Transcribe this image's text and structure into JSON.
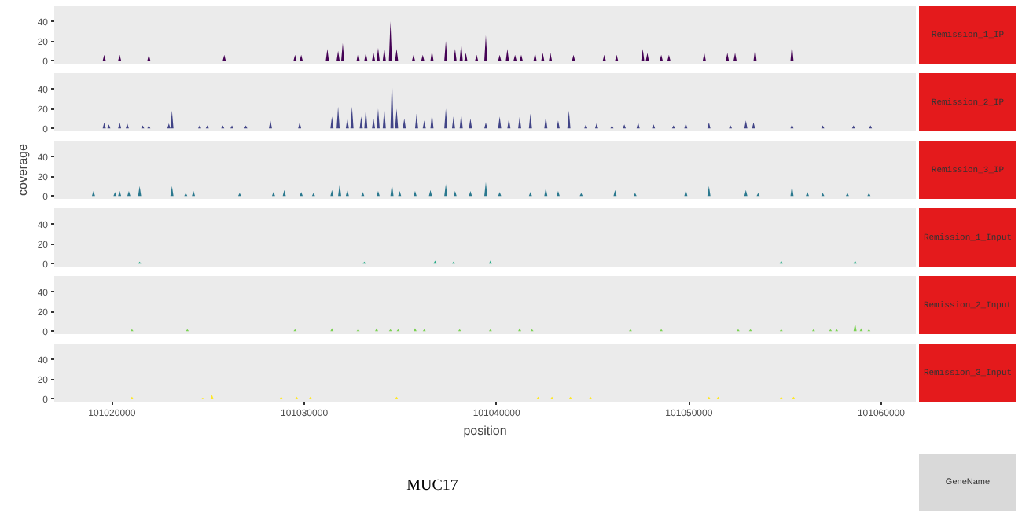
{
  "chart_data": [
    {
      "type": "area",
      "xlim": [
        101017000,
        101061800
      ],
      "ylim": [
        -3,
        56
      ],
      "xticks": [
        101020000,
        101030000,
        101040000,
        101050000,
        101060000
      ],
      "yticks": [
        0,
        20,
        40
      ],
      "tick_labels": "y",
      "series": [
        {
          "name": "Remission_1_IP",
          "color": "#440154",
          "x": [
            101018960,
            101019520,
            101019600,
            101019680,
            101020320,
            101020400,
            101020480,
            101021840,
            101021920,
            101022000,
            101025760,
            101025840,
            101025920,
            101029440,
            101029520,
            101029600,
            101029760,
            101029840,
            101029920,
            101031120,
            101031200,
            101031280,
            101031680,
            101031760,
            101031840,
            101031920,
            101032000,
            101032080,
            101032720,
            101032800,
            101032880,
            101033120,
            101033200,
            101033280,
            101033520,
            101033600,
            101033680,
            101033760,
            101033840,
            101033920,
            101034080,
            101034160,
            101034240,
            101034400,
            101034480,
            101034560,
            101034720,
            101034800,
            101034880,
            101035600,
            101035680,
            101035760,
            101036080,
            101036160,
            101036240,
            101036560,
            101036640,
            101036720,
            101037280,
            101037360,
            101037440,
            101037760,
            101037840,
            101037920,
            101038080,
            101038160,
            101038240,
            101038320,
            101038400,
            101038480,
            101038880,
            101038960,
            101039040,
            101039360,
            101039440,
            101039520,
            101040080,
            101040160,
            101040240,
            101040480,
            101040560,
            101040640,
            101040880,
            101040960,
            101041040,
            101041200,
            101041280,
            101041360,
            101041920,
            101042000,
            101042080,
            101042320,
            101042400,
            101042480,
            101042720,
            101042800,
            101042880,
            101043920,
            101044000,
            101044080,
            101045520,
            101045600,
            101045680,
            101046160,
            101046240,
            101046320,
            101047520,
            101047600,
            101047680,
            101047760,
            101047840,
            101047920,
            101048480,
            101048560,
            101048640,
            101048880,
            101048960,
            101049040,
            101050720,
            101050800,
            101050880,
            101051920,
            101052000,
            101052080,
            101052320,
            101052400,
            101052480,
            101053360,
            101053440,
            101053520,
            101055280,
            101055360,
            101055440,
            101059900
          ],
          "values": [
            0,
            0,
            6,
            0,
            0,
            6,
            0,
            0,
            6,
            0,
            0,
            6,
            0,
            0,
            6,
            0,
            0,
            6,
            0,
            0,
            12,
            0,
            0,
            10,
            0,
            0,
            18,
            0,
            0,
            8,
            0,
            0,
            8,
            0,
            0,
            8,
            0,
            0,
            13,
            0,
            0,
            13,
            0,
            0,
            40,
            0,
            0,
            12,
            0,
            0,
            6,
            0,
            0,
            6,
            0,
            0,
            10,
            0,
            0,
            20,
            0,
            0,
            12,
            0,
            0,
            18,
            0,
            0,
            8,
            0,
            0,
            6,
            0,
            0,
            26,
            0,
            0,
            6,
            0,
            0,
            12,
            0,
            0,
            6,
            0,
            0,
            6,
            0,
            0,
            8,
            0,
            0,
            8,
            0,
            0,
            8,
            0,
            0,
            6,
            0,
            0,
            6,
            0,
            0,
            6,
            0,
            0,
            12,
            0,
            0,
            8,
            0,
            0,
            6,
            0,
            0,
            6,
            0,
            0,
            8,
            0,
            0,
            8,
            0,
            0,
            8,
            0,
            0,
            12,
            0,
            0,
            16,
            0,
            0
          ]
        }
      ]
    },
    {
      "type": "area",
      "xlim": [
        101017000,
        101061800
      ],
      "ylim": [
        -3,
        56
      ],
      "xticks": [
        101020000,
        101030000,
        101040000,
        101050000,
        101060000
      ],
      "yticks": [
        0,
        20,
        40
      ],
      "tick_labels": "y",
      "series": [
        {
          "name": "Remission_2_IP",
          "color": "#414487",
          "x": [
            101018960,
            101019520,
            101019600,
            101019680,
            101019760,
            101019840,
            101019920,
            101020320,
            101020400,
            101020480,
            101020720,
            101020800,
            101020880,
            101021520,
            101021600,
            101021680,
            101021840,
            101021920,
            101022000,
            101022880,
            101022960,
            101023040,
            101023040,
            101023120,
            101023200,
            101024480,
            101024560,
            101024640,
            101024880,
            101024960,
            101025040,
            101025680,
            101025760,
            101025840,
            101026160,
            101026240,
            101026320,
            101026880,
            101026960,
            101027040,
            101028160,
            101028240,
            101028320,
            101029680,
            101029760,
            101029840,
            101031360,
            101031440,
            101031520,
            101031680,
            101031760,
            101031840,
            101032160,
            101032240,
            101032320,
            101032400,
            101032480,
            101032560,
            101032880,
            101032960,
            101033040,
            101033120,
            101033200,
            101033280,
            101033520,
            101033600,
            101033680,
            101033760,
            101033840,
            101033920,
            101034080,
            101034160,
            101034240,
            101034480,
            101034560,
            101034640,
            101034720,
            101034800,
            101034880,
            101035120,
            101035200,
            101035280,
            101035760,
            101035840,
            101035920,
            101036160,
            101036240,
            101036320,
            101036560,
            101036640,
            101036720,
            101037280,
            101037360,
            101037440,
            101037680,
            101037760,
            101037840,
            101038080,
            101038160,
            101038240,
            101038560,
            101038640,
            101038720,
            101039360,
            101039440,
            101039520,
            101040080,
            101040160,
            101040240,
            101040560,
            101040640,
            101040720,
            101041120,
            101041200,
            101041280,
            101041680,
            101041760,
            101041840,
            101042480,
            101042560,
            101042640,
            101043120,
            101043200,
            101043280,
            101043680,
            101043760,
            101043840,
            101044560,
            101044640,
            101044720,
            101045120,
            101045200,
            101045280,
            101045920,
            101046000,
            101046080,
            101046560,
            101046640,
            101046720,
            101047280,
            101047360,
            101047440,
            101048080,
            101048160,
            101048240,
            101049120,
            101049200,
            101049280,
            101049760,
            101049840,
            101049920,
            101050960,
            101051040,
            101051120,
            101052080,
            101052160,
            101052240,
            101052880,
            101052960,
            101053040,
            101053280,
            101053360,
            101053440,
            101055280,
            101055360,
            101055440,
            101056880,
            101056960,
            101057040,
            101058480,
            101058560,
            101058640,
            101059360,
            101059440,
            101059520,
            101059900
          ],
          "values": [
            0,
            0,
            6,
            0,
            0,
            4,
            0,
            0,
            6,
            0,
            0,
            5,
            0,
            0,
            3,
            0,
            0,
            3,
            0,
            0,
            5,
            0,
            0,
            18,
            0,
            0,
            3,
            0,
            0,
            3,
            0,
            0,
            3,
            0,
            0,
            3,
            0,
            0,
            3,
            0,
            0,
            8,
            0,
            0,
            6,
            0,
            0,
            12,
            0,
            0,
            22,
            0,
            0,
            10,
            0,
            0,
            22,
            0,
            0,
            12,
            0,
            0,
            20,
            0,
            0,
            10,
            0,
            0,
            20,
            0,
            0,
            20,
            0,
            0,
            52,
            0,
            0,
            20,
            0,
            0,
            10,
            0,
            0,
            15,
            0,
            0,
            8,
            0,
            0,
            15,
            0,
            0,
            20,
            0,
            0,
            12,
            0,
            0,
            15,
            0,
            0,
            10,
            0,
            0,
            6,
            0,
            0,
            12,
            0,
            0,
            10,
            0,
            0,
            12,
            0,
            0,
            15,
            0,
            0,
            12,
            0,
            0,
            8,
            0,
            0,
            18,
            0,
            0,
            4,
            0,
            0,
            5,
            0,
            0,
            3,
            0,
            0,
            4,
            0,
            0,
            6,
            0,
            0,
            4,
            0,
            0,
            3,
            0,
            0,
            5,
            0,
            0,
            6,
            0,
            0,
            3,
            0,
            0,
            8,
            0,
            0,
            6,
            0,
            0,
            4,
            0,
            0,
            3,
            0,
            0,
            3,
            0,
            0,
            3,
            0,
            0
          ]
        }
      ]
    },
    {
      "type": "area",
      "xlim": [
        101017000,
        101061800
      ],
      "ylim": [
        -3,
        56
      ],
      "xticks": [
        101020000,
        101030000,
        101040000,
        101050000,
        101060000
      ],
      "yticks": [
        0,
        20,
        40
      ],
      "tick_labels": "y",
      "ylabel": "coverage",
      "series": [
        {
          "name": "Remission_3_IP",
          "color": "#2a788e",
          "x": [
            101018960,
            101019040,
            101019120,
            101020080,
            101020160,
            101020240,
            101020320,
            101020400,
            101020480,
            101020800,
            101020880,
            101020960,
            101021360,
            101021440,
            101021520,
            101023040,
            101023120,
            101023200,
            101023760,
            101023840,
            101023920,
            101024160,
            101024240,
            101024320,
            101026560,
            101026640,
            101026720,
            101028320,
            101028400,
            101028480,
            101028880,
            101028960,
            101029040,
            101029760,
            101029840,
            101029920,
            101030400,
            101030480,
            101030560,
            101031360,
            101031440,
            101031520,
            101031760,
            101031840,
            101031920,
            101032160,
            101032240,
            101032320,
            101032960,
            101033040,
            101033120,
            101033760,
            101033840,
            101033920,
            101034480,
            101034560,
            101034640,
            101034880,
            101034960,
            101035040,
            101035680,
            101035760,
            101035840,
            101036480,
            101036560,
            101036640,
            101037280,
            101037360,
            101037440,
            101037760,
            101037840,
            101037920,
            101038560,
            101038640,
            101038720,
            101039360,
            101039440,
            101039520,
            101040080,
            101040160,
            101040240,
            101041680,
            101041760,
            101041840,
            101042480,
            101042560,
            101042640,
            101043120,
            101043200,
            101043280,
            101044320,
            101044400,
            101044480,
            101046080,
            101046160,
            101046240,
            101047120,
            101047200,
            101047280,
            101049760,
            101049840,
            101049920,
            101050960,
            101051040,
            101051120,
            101052880,
            101052960,
            101053040,
            101053520,
            101053600,
            101053680,
            101055280,
            101055360,
            101055440,
            101056080,
            101056160,
            101056240,
            101056880,
            101056960,
            101057040,
            101058160,
            101058240,
            101058320,
            101059280,
            101059360,
            101059440,
            101059900
          ],
          "values": [
            0,
            5,
            0,
            0,
            4,
            0,
            0,
            5,
            0,
            0,
            5,
            0,
            0,
            10,
            0,
            0,
            10,
            0,
            0,
            3,
            0,
            0,
            5,
            0,
            0,
            3,
            0,
            0,
            4,
            0,
            0,
            6,
            0,
            0,
            4,
            0,
            0,
            3,
            0,
            0,
            6,
            0,
            0,
            12,
            0,
            0,
            6,
            0,
            0,
            4,
            0,
            0,
            5,
            0,
            0,
            12,
            0,
            0,
            5,
            0,
            0,
            5,
            0,
            0,
            6,
            0,
            0,
            12,
            0,
            0,
            5,
            0,
            0,
            5,
            0,
            0,
            14,
            0,
            0,
            4,
            0,
            0,
            4,
            0,
            0,
            8,
            0,
            0,
            5,
            0,
            0,
            3,
            0,
            0,
            6,
            0,
            0,
            3,
            0,
            0,
            6,
            0,
            0,
            10,
            0,
            0,
            6,
            0,
            0,
            3,
            0,
            0,
            10,
            0,
            0,
            4,
            0,
            0,
            3,
            0,
            0,
            3,
            0,
            0,
            3,
            0,
            0
          ]
        }
      ]
    },
    {
      "type": "area",
      "xlim": [
        101017000,
        101061800
      ],
      "ylim": [
        -3,
        56
      ],
      "xticks": [
        101020000,
        101030000,
        101040000,
        101050000,
        101060000
      ],
      "yticks": [
        0,
        20,
        40
      ],
      "tick_labels": "y",
      "series": [
        {
          "name": "Remission_1_Input",
          "color": "#22a884",
          "x": [
            101018960,
            101021360,
            101021440,
            101021520,
            101033040,
            101033120,
            101033200,
            101036720,
            101036800,
            101036880,
            101037680,
            101037760,
            101037840,
            101039600,
            101039680,
            101039760,
            101054720,
            101054800,
            101054880,
            101058560,
            101058640,
            101058720,
            101059900
          ],
          "values": [
            0,
            0,
            2,
            0,
            0,
            2,
            0,
            0,
            3,
            0,
            0,
            2,
            0,
            0,
            3,
            0,
            0,
            3,
            0,
            0,
            3,
            0,
            0
          ]
        }
      ]
    },
    {
      "type": "area",
      "xlim": [
        101017000,
        101061800
      ],
      "ylim": [
        -3,
        56
      ],
      "xticks": [
        101020000,
        101030000,
        101040000,
        101050000,
        101060000
      ],
      "yticks": [
        0,
        20,
        40
      ],
      "tick_labels": "y",
      "series": [
        {
          "name": "Remission_2_Input",
          "color": "#7ad151",
          "x": [
            101018960,
            101020960,
            101021040,
            101021120,
            101023840,
            101023920,
            101024000,
            101029440,
            101029520,
            101029600,
            101031360,
            101031440,
            101031520,
            101032720,
            101032800,
            101032880,
            101033680,
            101033760,
            101033840,
            101034400,
            101034480,
            101034560,
            101034800,
            101034880,
            101034960,
            101035680,
            101035760,
            101035840,
            101036160,
            101036240,
            101036320,
            101038000,
            101038080,
            101038160,
            101039600,
            101039680,
            101039760,
            101041120,
            101041200,
            101041280,
            101041760,
            101041840,
            101041920,
            101046880,
            101046960,
            101047040,
            101048480,
            101048560,
            101048640,
            101052480,
            101052560,
            101052640,
            101053120,
            101053200,
            101053280,
            101054720,
            101054800,
            101054880,
            101056400,
            101056480,
            101056560,
            101057280,
            101057360,
            101057440,
            101057600,
            101057680,
            101057760,
            101058560,
            101058640,
            101058720,
            101058880,
            101058960,
            101059040,
            101059280,
            101059360,
            101059440,
            101059900
          ],
          "values": [
            0,
            0,
            2,
            0,
            0,
            2,
            0,
            0,
            2,
            0,
            0,
            3,
            0,
            0,
            2,
            0,
            0,
            3,
            0,
            0,
            2,
            0,
            0,
            2,
            0,
            0,
            3,
            0,
            0,
            2,
            0,
            0,
            2,
            0,
            0,
            2,
            0,
            0,
            3,
            0,
            0,
            2,
            0,
            0,
            2,
            0,
            0,
            2,
            0,
            0,
            2,
            0,
            0,
            2,
            0,
            0,
            2,
            0,
            0,
            2,
            0,
            0,
            2,
            0,
            0,
            2,
            0,
            0,
            8,
            0,
            0,
            3,
            0,
            0,
            2,
            0,
            0
          ]
        }
      ]
    },
    {
      "type": "area",
      "xlim": [
        101017000,
        101061800
      ],
      "ylim": [
        -3,
        56
      ],
      "xticks": [
        101020000,
        101030000,
        101040000,
        101050000,
        101060000
      ],
      "yticks": [
        0,
        20,
        40
      ],
      "xlabel": "position",
      "series": [
        {
          "name": "Remission_3_Input",
          "color": "#fde725",
          "x": [
            101018960,
            101020960,
            101021040,
            101021120,
            101024640,
            101024720,
            101024800,
            101025120,
            101025200,
            101025280,
            101028720,
            101028800,
            101028880,
            101029520,
            101029600,
            101029680,
            101030240,
            101030320,
            101030400,
            101034720,
            101034800,
            101034880,
            101042080,
            101042160,
            101042240,
            101042800,
            101042880,
            101042960,
            101043760,
            101043840,
            101043920,
            101044800,
            101044880,
            101044960,
            101050960,
            101051040,
            101051120,
            101051440,
            101051520,
            101051600,
            101054720,
            101054800,
            101054880,
            101055360,
            101055440,
            101055520,
            101059900
          ],
          "values": [
            0,
            0,
            2,
            0,
            0,
            1,
            0,
            0,
            4,
            0,
            0,
            2,
            0,
            0,
            2,
            0,
            0,
            2,
            0,
            0,
            2,
            0,
            0,
            2,
            0,
            0,
            2,
            0,
            0,
            2,
            0,
            0,
            2,
            0,
            0,
            2,
            0,
            0,
            2,
            0,
            0,
            2,
            0,
            0,
            2,
            0,
            0
          ]
        }
      ]
    },
    {
      "type": "other",
      "title": "GeneName",
      "annotations": [
        "MUC17"
      ]
    }
  ]
}
